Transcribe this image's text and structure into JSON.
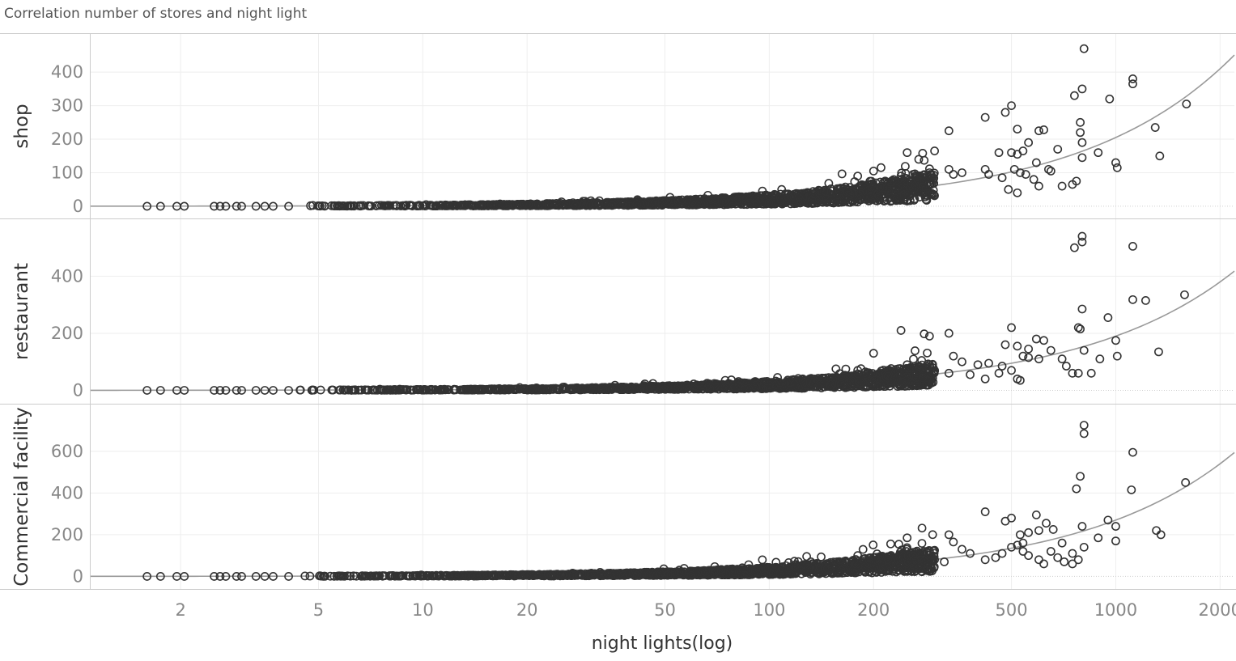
{
  "chart_data": {
    "type": "scatter",
    "title": "Correlation number of stores and night light",
    "xlabel": "night lights(log)",
    "x_scale": "log",
    "xlim": [
      1.1,
      2200
    ],
    "x_ticks": [
      2,
      5,
      10,
      20,
      50,
      100,
      200,
      500,
      1000,
      2000
    ],
    "colors": {
      "points": "#333333",
      "trend": "#999999",
      "grid": "#eeeeee",
      "frame": "#cccccc",
      "tick_text": "#888888"
    },
    "marker": "open-circle",
    "facets": [
      {
        "label": "shop",
        "ylim": [
          -5,
          480
        ],
        "y_ticks": [
          0,
          100,
          200,
          300,
          400
        ],
        "trend": {
          "form": "linear",
          "intercept": 0,
          "slope": 0.205
        },
        "points": [
          [
            1.6,
            0
          ],
          [
            1.75,
            0
          ],
          [
            1.95,
            0
          ],
          [
            2.05,
            0
          ],
          [
            2.5,
            0
          ],
          [
            2.6,
            0
          ],
          [
            2.7,
            0
          ],
          [
            2.9,
            0
          ],
          [
            3.0,
            0
          ],
          [
            3.3,
            0
          ],
          [
            3.5,
            0
          ],
          [
            3.7,
            0
          ],
          [
            4.1,
            0
          ],
          [
            810,
            470
          ],
          [
            1120,
            380
          ],
          [
            1120,
            365
          ],
          [
            960,
            320
          ],
          [
            800,
            350
          ],
          [
            760,
            330
          ],
          [
            1600,
            305
          ],
          [
            500,
            300
          ],
          [
            480,
            280
          ],
          [
            420,
            265
          ],
          [
            1300,
            235
          ],
          [
            520,
            230
          ],
          [
            620,
            228
          ],
          [
            600,
            225
          ],
          [
            330,
            225
          ],
          [
            790,
            250
          ],
          [
            790,
            220
          ],
          [
            800,
            190
          ],
          [
            560,
            190
          ],
          [
            890,
            160
          ],
          [
            1340,
            150
          ],
          [
            250,
            160
          ],
          [
            300,
            165
          ],
          [
            270,
            140
          ],
          [
            280,
            137
          ],
          [
            460,
            160
          ],
          [
            500,
            160
          ],
          [
            520,
            155
          ],
          [
            540,
            165
          ],
          [
            800,
            145
          ],
          [
            1000,
            130
          ],
          [
            1010,
            115
          ],
          [
            680,
            170
          ],
          [
            640,
            110
          ],
          [
            650,
            105
          ],
          [
            590,
            130
          ],
          [
            510,
            110
          ],
          [
            530,
            100
          ],
          [
            550,
            95
          ],
          [
            580,
            80
          ],
          [
            600,
            60
          ],
          [
            700,
            60
          ],
          [
            750,
            65
          ],
          [
            770,
            75
          ],
          [
            180,
            90
          ],
          [
            200,
            105
          ],
          [
            240,
            90
          ],
          [
            260,
            95
          ],
          [
            290,
            100
          ],
          [
            330,
            110
          ],
          [
            340,
            95
          ],
          [
            360,
            100
          ],
          [
            420,
            110
          ],
          [
            430,
            95
          ],
          [
            470,
            85
          ],
          [
            490,
            50
          ],
          [
            520,
            40
          ]
        ]
      },
      {
        "label": "restaurant",
        "ylim": [
          -10,
          560
        ],
        "y_ticks": [
          0,
          200,
          400
        ],
        "trend": {
          "form": "linear",
          "intercept": 0,
          "slope": 0.19
        },
        "points": [
          [
            1.6,
            0
          ],
          [
            1.75,
            0
          ],
          [
            1.95,
            0
          ],
          [
            2.05,
            0
          ],
          [
            2.5,
            0
          ],
          [
            2.6,
            0
          ],
          [
            2.7,
            0
          ],
          [
            2.9,
            0
          ],
          [
            3.0,
            0
          ],
          [
            3.3,
            0
          ],
          [
            3.5,
            0
          ],
          [
            3.7,
            0
          ],
          [
            4.1,
            0
          ],
          [
            800,
            540
          ],
          [
            800,
            520
          ],
          [
            760,
            500
          ],
          [
            1120,
            505
          ],
          [
            1120,
            318
          ],
          [
            1220,
            315
          ],
          [
            1580,
            335
          ],
          [
            800,
            285
          ],
          [
            950,
            255
          ],
          [
            240,
            210
          ],
          [
            280,
            198
          ],
          [
            290,
            190
          ],
          [
            330,
            200
          ],
          [
            500,
            220
          ],
          [
            480,
            160
          ],
          [
            520,
            155
          ],
          [
            560,
            145
          ],
          [
            590,
            180
          ],
          [
            620,
            175
          ],
          [
            650,
            140
          ],
          [
            780,
            220
          ],
          [
            790,
            215
          ],
          [
            810,
            140
          ],
          [
            900,
            110
          ],
          [
            1000,
            175
          ],
          [
            1010,
            120
          ],
          [
            1330,
            135
          ],
          [
            200,
            130
          ],
          [
            340,
            120
          ],
          [
            360,
            100
          ],
          [
            400,
            90
          ],
          [
            430,
            95
          ],
          [
            470,
            85
          ],
          [
            540,
            120
          ],
          [
            560,
            115
          ],
          [
            600,
            110
          ],
          [
            700,
            110
          ],
          [
            720,
            85
          ],
          [
            750,
            60
          ],
          [
            780,
            60
          ],
          [
            850,
            60
          ],
          [
            180,
            70
          ],
          [
            220,
            50
          ],
          [
            250,
            90
          ],
          [
            265,
            80
          ],
          [
            300,
            70
          ],
          [
            330,
            60
          ],
          [
            380,
            55
          ],
          [
            420,
            40
          ],
          [
            460,
            60
          ],
          [
            500,
            70
          ],
          [
            520,
            40
          ],
          [
            530,
            35
          ]
        ]
      },
      {
        "label": "Commercial facility",
        "ylim": [
          -10,
          770
        ],
        "y_ticks": [
          0,
          200,
          400,
          600
        ],
        "trend": {
          "form": "linear",
          "intercept": 0,
          "slope": 0.27
        },
        "points": [
          [
            1.6,
            0
          ],
          [
            1.75,
            0
          ],
          [
            1.95,
            0
          ],
          [
            2.05,
            0
          ],
          [
            2.5,
            0
          ],
          [
            2.6,
            0
          ],
          [
            2.7,
            0
          ],
          [
            2.9,
            0
          ],
          [
            3.0,
            0
          ],
          [
            3.3,
            0
          ],
          [
            3.5,
            0
          ],
          [
            3.7,
            0
          ],
          [
            4.1,
            0
          ],
          [
            810,
            725
          ],
          [
            810,
            685
          ],
          [
            1120,
            595
          ],
          [
            790,
            480
          ],
          [
            770,
            420
          ],
          [
            1110,
            415
          ],
          [
            1590,
            450
          ],
          [
            420,
            310
          ],
          [
            500,
            280
          ],
          [
            480,
            265
          ],
          [
            590,
            295
          ],
          [
            630,
            255
          ],
          [
            600,
            220
          ],
          [
            560,
            210
          ],
          [
            530,
            200
          ],
          [
            540,
            160
          ],
          [
            660,
            225
          ],
          [
            700,
            160
          ],
          [
            750,
            110
          ],
          [
            800,
            240
          ],
          [
            810,
            140
          ],
          [
            950,
            270
          ],
          [
            1000,
            240
          ],
          [
            890,
            185
          ],
          [
            1000,
            170
          ],
          [
            1310,
            220
          ],
          [
            1350,
            200
          ],
          [
            250,
            185
          ],
          [
            330,
            200
          ],
          [
            340,
            165
          ],
          [
            360,
            130
          ],
          [
            380,
            110
          ],
          [
            420,
            80
          ],
          [
            450,
            90
          ],
          [
            470,
            110
          ],
          [
            500,
            140
          ],
          [
            520,
            150
          ],
          [
            540,
            120
          ],
          [
            560,
            100
          ],
          [
            600,
            80
          ],
          [
            620,
            60
          ],
          [
            650,
            120
          ],
          [
            680,
            90
          ],
          [
            710,
            70
          ],
          [
            750,
            60
          ],
          [
            780,
            80
          ],
          [
            180,
            100
          ],
          [
            200,
            90
          ],
          [
            220,
            80
          ],
          [
            240,
            70
          ],
          [
            260,
            100
          ],
          [
            280,
            120
          ],
          [
            300,
            80
          ],
          [
            320,
            70
          ]
        ]
      }
    ]
  }
}
